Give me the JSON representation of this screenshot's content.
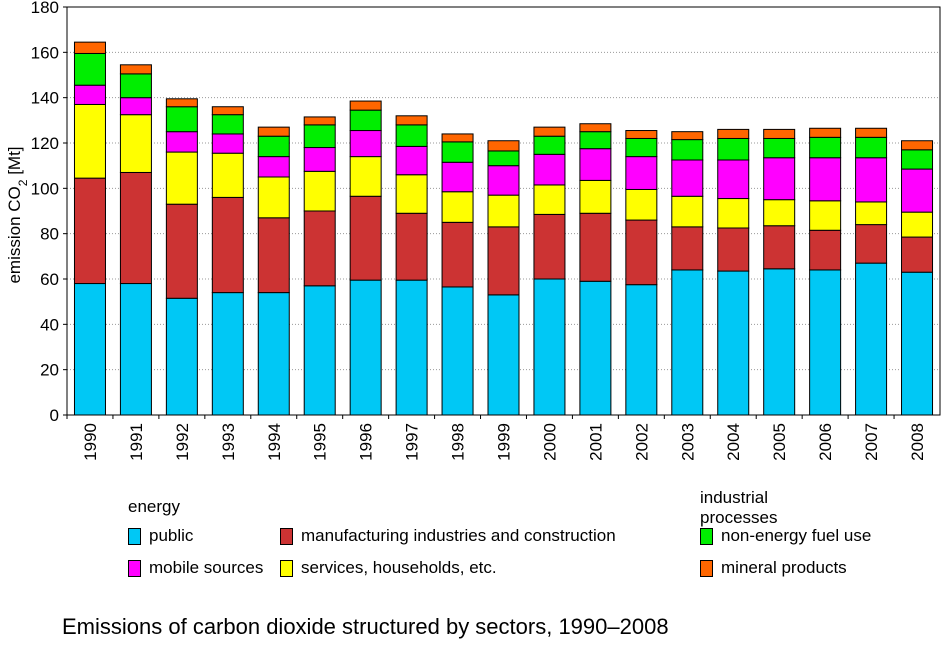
{
  "chart_data": {
    "type": "bar",
    "stacked": true,
    "title": "Emissions of carbon dioxide structured by sectors, 1990–2008",
    "ylabel_main": "emission CO",
    "ylabel_sub": "2",
    "ylabel_unit": " [Mt]",
    "ylim": [
      0,
      180
    ],
    "yticks": [
      "0",
      "20",
      "40",
      "60",
      "80",
      "100",
      "120",
      "140",
      "160",
      "180"
    ],
    "yticks_values": [
      0,
      20,
      40,
      60,
      80,
      100,
      120,
      140,
      160,
      180
    ],
    "grid": true,
    "categories": [
      "1990",
      "1991",
      "1992",
      "1993",
      "1994",
      "1995",
      "1996",
      "1997",
      "1998",
      "1999",
      "2000",
      "2001",
      "2002",
      "2003",
      "2004",
      "2005",
      "2006",
      "2007",
      "2008"
    ],
    "series": [
      {
        "name": "public",
        "color": "#00c8f5",
        "values": [
          58,
          58,
          51.5,
          54,
          54,
          57,
          59.5,
          59.5,
          56.5,
          53,
          60,
          59,
          57.5,
          64,
          63.5,
          64.5,
          64,
          67,
          63
        ]
      },
      {
        "name": "manufacturing industries and construction",
        "color": "#cc3333",
        "values": [
          46.5,
          49,
          41.5,
          42,
          33,
          33,
          37,
          29.5,
          28.5,
          30,
          28.5,
          30,
          28.5,
          19,
          19,
          19,
          17.5,
          17,
          15.5
        ]
      },
      {
        "name": "services, households, etc.",
        "color": "#ffff00",
        "values": [
          32.5,
          25.5,
          23,
          19.5,
          18,
          17.5,
          17.5,
          17,
          13.5,
          14,
          13,
          14.5,
          13.5,
          13.5,
          13,
          11.5,
          13,
          10,
          11
        ]
      },
      {
        "name": "mobile sources",
        "color": "#ff00ff",
        "values": [
          8.5,
          7.5,
          9,
          8.5,
          9,
          10.5,
          11.5,
          12.5,
          13,
          13,
          13.5,
          14,
          14.5,
          16,
          17,
          18.5,
          19,
          19.5,
          19
        ]
      },
      {
        "name": "non-energy fuel use",
        "color": "#00ee00",
        "values": [
          14,
          10.5,
          11,
          8.5,
          9,
          10,
          9,
          9.5,
          9,
          6.5,
          8,
          7.5,
          8,
          9,
          9.5,
          8.5,
          9,
          9,
          8.5
        ]
      },
      {
        "name": "mineral products",
        "color": "#ff6600",
        "values": [
          5,
          4,
          3.5,
          3.5,
          4,
          3.5,
          4,
          4,
          3.5,
          4.5,
          4,
          3.5,
          3.5,
          3.5,
          4,
          4,
          4,
          4,
          4
        ]
      }
    ]
  },
  "legend": {
    "group_energy": "energy",
    "group_industrial": "industrial processes",
    "items": [
      {
        "label": "public",
        "color": "#00c8f5"
      },
      {
        "label": "manufacturing industries and construction",
        "color": "#cc3333"
      },
      {
        "label": "non-energy fuel use",
        "color": "#00ee00"
      },
      {
        "label": "mobile sources",
        "color": "#ff00ff"
      },
      {
        "label": "services, households, etc.",
        "color": "#ffff00"
      },
      {
        "label": "mineral products",
        "color": "#ff6600"
      }
    ]
  }
}
